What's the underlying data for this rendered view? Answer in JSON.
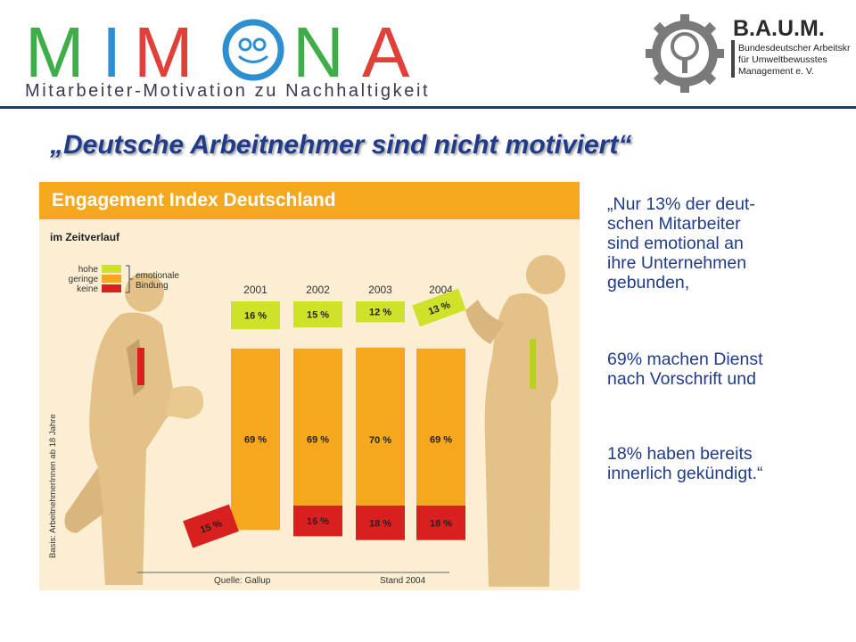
{
  "logo_mimona": {
    "letters": [
      "M",
      "I",
      "M",
      "O",
      "N",
      "A"
    ],
    "subtitle": "Mitarbeiter-Motivation zu Nachhaltigkeit",
    "colors": {
      "green": "#3fae49",
      "blue": "#2e8fd0",
      "red": "#e0403a"
    }
  },
  "logo_baum": {
    "title": "B.A.U.M.",
    "lines": [
      "Bundesdeutscher Arbeitskreis",
      "für Umweltbewusstes",
      "Management e. V."
    ]
  },
  "slide_title": "„Deutsche Arbeitnehmer sind nicht motiviert“",
  "figure": {
    "header_title": "Engagement Index Deutschland",
    "subtitle": "im Zeitverlauf",
    "legend": {
      "items": [
        {
          "label": "hohe",
          "color": "#cfe22a"
        },
        {
          "label": "geringe",
          "color": "#f5a81e"
        },
        {
          "label": "keine",
          "color": "#d92020"
        }
      ],
      "group_label_1": "emotionale",
      "group_label_2": "Bindung"
    },
    "y_axis_note": "Basis: ArbeitnehmerInnen ab 18 Jahre",
    "source": "Quelle: Gallup",
    "stand": "Stand 2004"
  },
  "chart_data": {
    "type": "bar",
    "title": "Engagement Index Deutschland",
    "subtitle": "im Zeitverlauf",
    "categories": [
      "2001",
      "2002",
      "2003",
      "2004"
    ],
    "series": [
      {
        "name": "hohe",
        "values": [
          16,
          15,
          12,
          13
        ],
        "labels": [
          "16 %",
          "15 %",
          "12 %",
          "13 %"
        ],
        "color": "#cfe22a"
      },
      {
        "name": "geringe",
        "values": [
          69,
          69,
          70,
          69
        ],
        "labels": [
          "69 %",
          "69 %",
          "70 %",
          "69 %"
        ],
        "color": "#f5a81e"
      },
      {
        "name": "keine",
        "values": [
          15,
          16,
          18,
          18
        ],
        "labels": [
          "15 %",
          "16 %",
          "18 %",
          "18 %"
        ],
        "color": "#d92020"
      }
    ],
    "legend_position": "top-left"
  },
  "quote": {
    "p1": [
      "„Nur 13% der deut-",
      "schen Mitarbeiter",
      "sind emotional an",
      "ihre Unternehmen",
      "gebunden,"
    ],
    "p2": [
      "69% machen Dienst",
      "nach Vorschrift und"
    ],
    "p3": [
      "18% haben bereits",
      "innerlich gekündigt.“"
    ]
  }
}
